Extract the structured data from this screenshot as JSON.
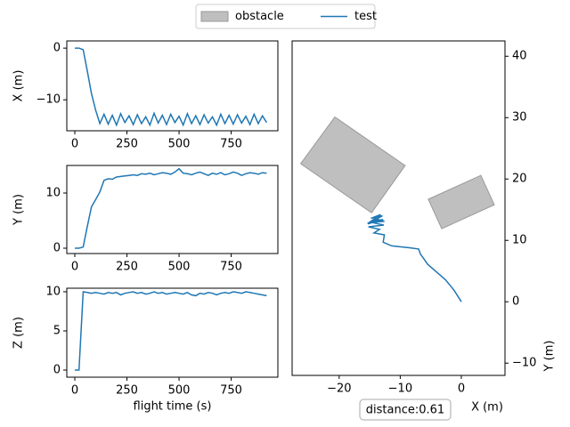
{
  "chart_data": [
    {
      "type": "line",
      "ylabel": "X (m)",
      "color": "#1f77b4",
      "x": [
        0,
        20,
        40,
        60,
        80,
        100,
        120,
        140,
        160,
        180,
        200,
        220,
        240,
        260,
        280,
        300,
        320,
        340,
        360,
        380,
        400,
        420,
        440,
        460,
        480,
        500,
        520,
        540,
        560,
        580,
        600,
        620,
        640,
        660,
        680,
        700,
        720,
        740,
        760,
        780,
        800,
        820,
        840,
        860,
        880,
        900,
        920
      ],
      "values": [
        0,
        0,
        -0.3,
        -4.5,
        -8.8,
        -12,
        -14.6,
        -12.8,
        -14.7,
        -13,
        -14.9,
        -12.7,
        -14.4,
        -13.1,
        -14.8,
        -12.9,
        -14.6,
        -13.3,
        -14.9,
        -12.6,
        -14.5,
        -13,
        -14.8,
        -12.8,
        -14.4,
        -13.2,
        -14.9,
        -12.7,
        -14.6,
        -13.1,
        -14.8,
        -12.9,
        -14.5,
        -13.3,
        -14.9,
        -12.8,
        -14.6,
        -13,
        -14.7,
        -12.9,
        -14.5,
        -13.2,
        -14.8,
        -12.8,
        -14.6,
        -13.1,
        -14.4
      ],
      "xlim": [
        -38.5,
        974
      ],
      "ylim": [
        -16.0,
        1.4
      ],
      "xticks": [
        0,
        250,
        500,
        750
      ],
      "yticks": [
        0,
        {
          "value": -10,
          "label": "−10"
        }
      ]
    },
    {
      "type": "line",
      "ylabel": "Y (m)",
      "color": "#1f77b4",
      "x": [
        0,
        20,
        40,
        60,
        80,
        100,
        120,
        140,
        160,
        180,
        200,
        220,
        240,
        260,
        280,
        300,
        320,
        340,
        360,
        380,
        400,
        420,
        440,
        460,
        480,
        500,
        520,
        540,
        560,
        580,
        600,
        620,
        640,
        660,
        680,
        700,
        720,
        740,
        760,
        780,
        800,
        820,
        840,
        860,
        880,
        900,
        920
      ],
      "values": [
        0,
        0,
        0.2,
        4,
        7.5,
        8.8,
        10.2,
        12.3,
        12.6,
        12.5,
        12.9,
        13,
        13.1,
        13.2,
        13.3,
        13.2,
        13.5,
        13.4,
        13.6,
        13.3,
        13.5,
        13.7,
        13.6,
        13.4,
        13.8,
        14.4,
        13.6,
        13.5,
        13.3,
        13.6,
        13.8,
        13.5,
        13.2,
        13.6,
        13.4,
        13.7,
        13.3,
        13.5,
        13.8,
        13.6,
        13.2,
        13.5,
        13.7,
        13.6,
        13.4,
        13.7,
        13.6
      ],
      "xlim": [
        -38.5,
        974
      ],
      "ylim": [
        -0.97,
        15.0
      ],
      "xticks": [
        0,
        250,
        500,
        750
      ],
      "yticks": [
        0,
        10
      ]
    },
    {
      "type": "line",
      "ylabel": "Z (m)",
      "xlabel": "flight time (s)",
      "color": "#1f77b4",
      "x": [
        0,
        20,
        40,
        60,
        80,
        100,
        120,
        140,
        160,
        180,
        200,
        220,
        240,
        260,
        280,
        300,
        320,
        340,
        360,
        380,
        400,
        420,
        440,
        460,
        480,
        500,
        520,
        540,
        560,
        580,
        600,
        620,
        640,
        660,
        680,
        700,
        720,
        740,
        760,
        780,
        800,
        820,
        840,
        860,
        880,
        900,
        920
      ],
      "values": [
        0,
        0,
        10,
        9.9,
        9.8,
        9.9,
        9.8,
        9.7,
        9.9,
        9.8,
        9.9,
        9.6,
        9.8,
        9.9,
        10,
        9.8,
        9.9,
        9.7,
        9.8,
        10,
        9.8,
        9.9,
        9.7,
        9.8,
        9.9,
        9.8,
        9.7,
        9.9,
        9.6,
        9.5,
        9.8,
        9.7,
        9.9,
        9.8,
        9.6,
        9.8,
        9.9,
        9.8,
        10,
        9.9,
        9.8,
        10,
        9.9,
        9.8,
        9.7,
        9.6,
        9.5
      ],
      "xlim": [
        -38.5,
        974
      ],
      "ylim": [
        -0.91,
        10.45
      ],
      "xticks": [
        0,
        250,
        500,
        750
      ],
      "yticks": [
        0,
        5,
        10
      ]
    },
    {
      "type": "trajectory",
      "xlabel": "X (m)",
      "ylabel": "Y (m)",
      "yaxis_side": "right",
      "annotation": "distance:0.61",
      "xlim": [
        -27.7,
        7.15
      ],
      "ylim": [
        -12.0,
        42.5
      ],
      "xticks": [
        {
          "value": -20,
          "label": "−20"
        },
        {
          "value": -10,
          "label": "−10"
        },
        0
      ],
      "yticks": [
        {
          "value": -10,
          "label": "−10"
        },
        0,
        10,
        20,
        30,
        40
      ],
      "series": [
        {
          "name": "obstacle",
          "color": "#bfbfbf",
          "polygons": [
            {
              "x": [
                -20.7,
                -9.2,
                -14.7,
                -26.3
              ],
              "y": [
                30.1,
                22.2,
                14.5,
                22.5
              ]
            },
            {
              "x": [
                -5.4,
                3.2,
                5.4,
                -3.2
              ],
              "y": [
                16.7,
                20.6,
                15.8,
                11.9
              ]
            }
          ]
        },
        {
          "name": "test",
          "color": "#1f77b4",
          "x": [
            0,
            -1.2,
            -2.6,
            -4.1,
            -5.5,
            -6.7,
            -7.0,
            -8.5,
            -11.4,
            -12.8,
            -12.6,
            -14.3,
            -13.4,
            -15.2,
            -12.7,
            -15.0,
            -12.8,
            -15.3,
            -12.9,
            -14.8,
            -13.2,
            -15.1,
            -12.6,
            -14.0
          ],
          "values": [
            0,
            1.9,
            3.6,
            4.9,
            6.1,
            7.8,
            8.6,
            8.8,
            9.1,
            9.7,
            10.9,
            11.2,
            11.8,
            12.2,
            12.5,
            13.0,
            13.4,
            12.7,
            14.0,
            13.6,
            14.2,
            12.9,
            13.1,
            13.5
          ]
        }
      ]
    }
  ]
}
